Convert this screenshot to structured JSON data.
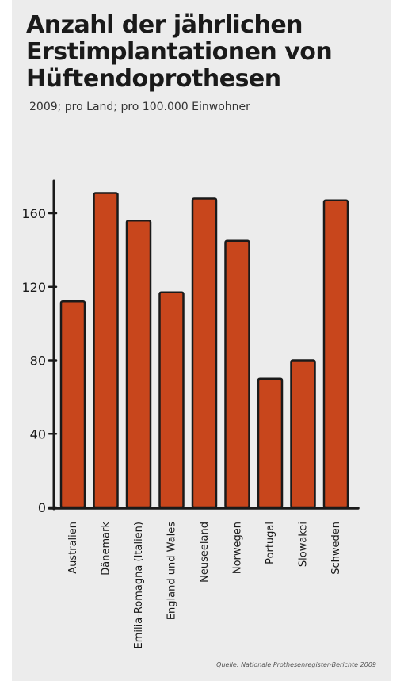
{
  "title": "Anzahl der jährlichen Erstimplantationen von Hüftendoprothesen",
  "subtitle": "2009; pro Land; pro 100.000 Einwohner",
  "source": "Quelle: Nationale Prothesenregister-Berichte 2009",
  "colors": {
    "bar": "#c8461c",
    "outline": "#1a1a1a",
    "background": "#ececec"
  },
  "chart_data": {
    "type": "bar",
    "title": "Anzahl der jährlichen Erstimplantationen von Hüftendoprothesen",
    "subtitle": "2009; pro Land; pro 100.000 Einwohner",
    "categories": [
      "Australien",
      "Dänemark",
      "Emilia-Romagna (Italien)",
      "England und Wales",
      "Neuseeland",
      "Norwegen",
      "Portugal",
      "Slowakei",
      "Schweden"
    ],
    "values": [
      112,
      171,
      156,
      117,
      168,
      145,
      70,
      80,
      167
    ],
    "yticks": [
      0,
      40,
      80,
      120,
      160
    ],
    "ylim": [
      0,
      180
    ],
    "xlabel": "",
    "ylabel": "",
    "grid": false,
    "legend": "none"
  }
}
